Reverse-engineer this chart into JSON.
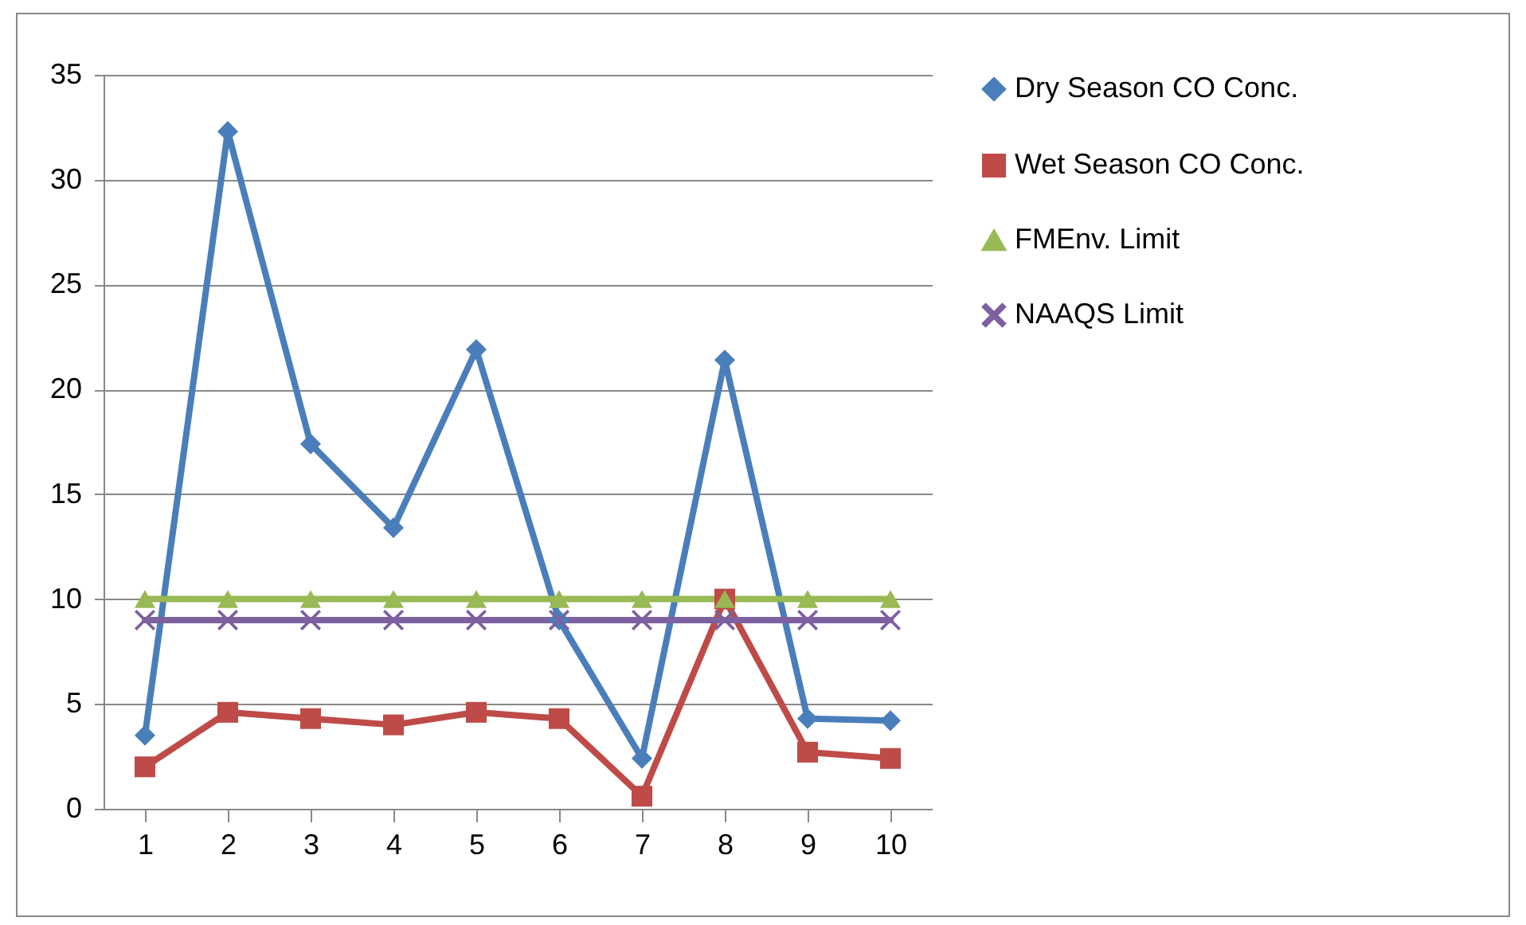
{
  "chart_data": {
    "type": "line",
    "categories": [
      "1",
      "2",
      "3",
      "4",
      "5",
      "6",
      "7",
      "8",
      "9",
      "10"
    ],
    "series": [
      {
        "name": "Dry Season CO Conc.",
        "color": "#4a7ebb",
        "marker": "diamond",
        "values": [
          3.5,
          32.3,
          17.4,
          13.4,
          21.9,
          9.0,
          2.4,
          21.4,
          4.3,
          4.2
        ]
      },
      {
        "name": "Wet Season CO Conc.",
        "color": "#be4b48",
        "marker": "square",
        "values": [
          2.0,
          4.6,
          4.3,
          4.0,
          4.6,
          4.3,
          0.6,
          10.0,
          2.7,
          2.4
        ]
      },
      {
        "name": "FMEnv. Limit",
        "color": "#98b954",
        "marker": "triangle",
        "values": [
          10,
          10,
          10,
          10,
          10,
          10,
          10,
          10,
          10,
          10
        ]
      },
      {
        "name": "NAAQS Limit",
        "color": "#7d60a0",
        "marker": "cross",
        "values": [
          9,
          9,
          9,
          9,
          9,
          9,
          9,
          9,
          9,
          9
        ]
      }
    ],
    "ylim": [
      0,
      35
    ],
    "yticks": [
      0,
      5,
      10,
      15,
      20,
      25,
      30,
      35
    ],
    "grid": "y",
    "legend": "right"
  }
}
